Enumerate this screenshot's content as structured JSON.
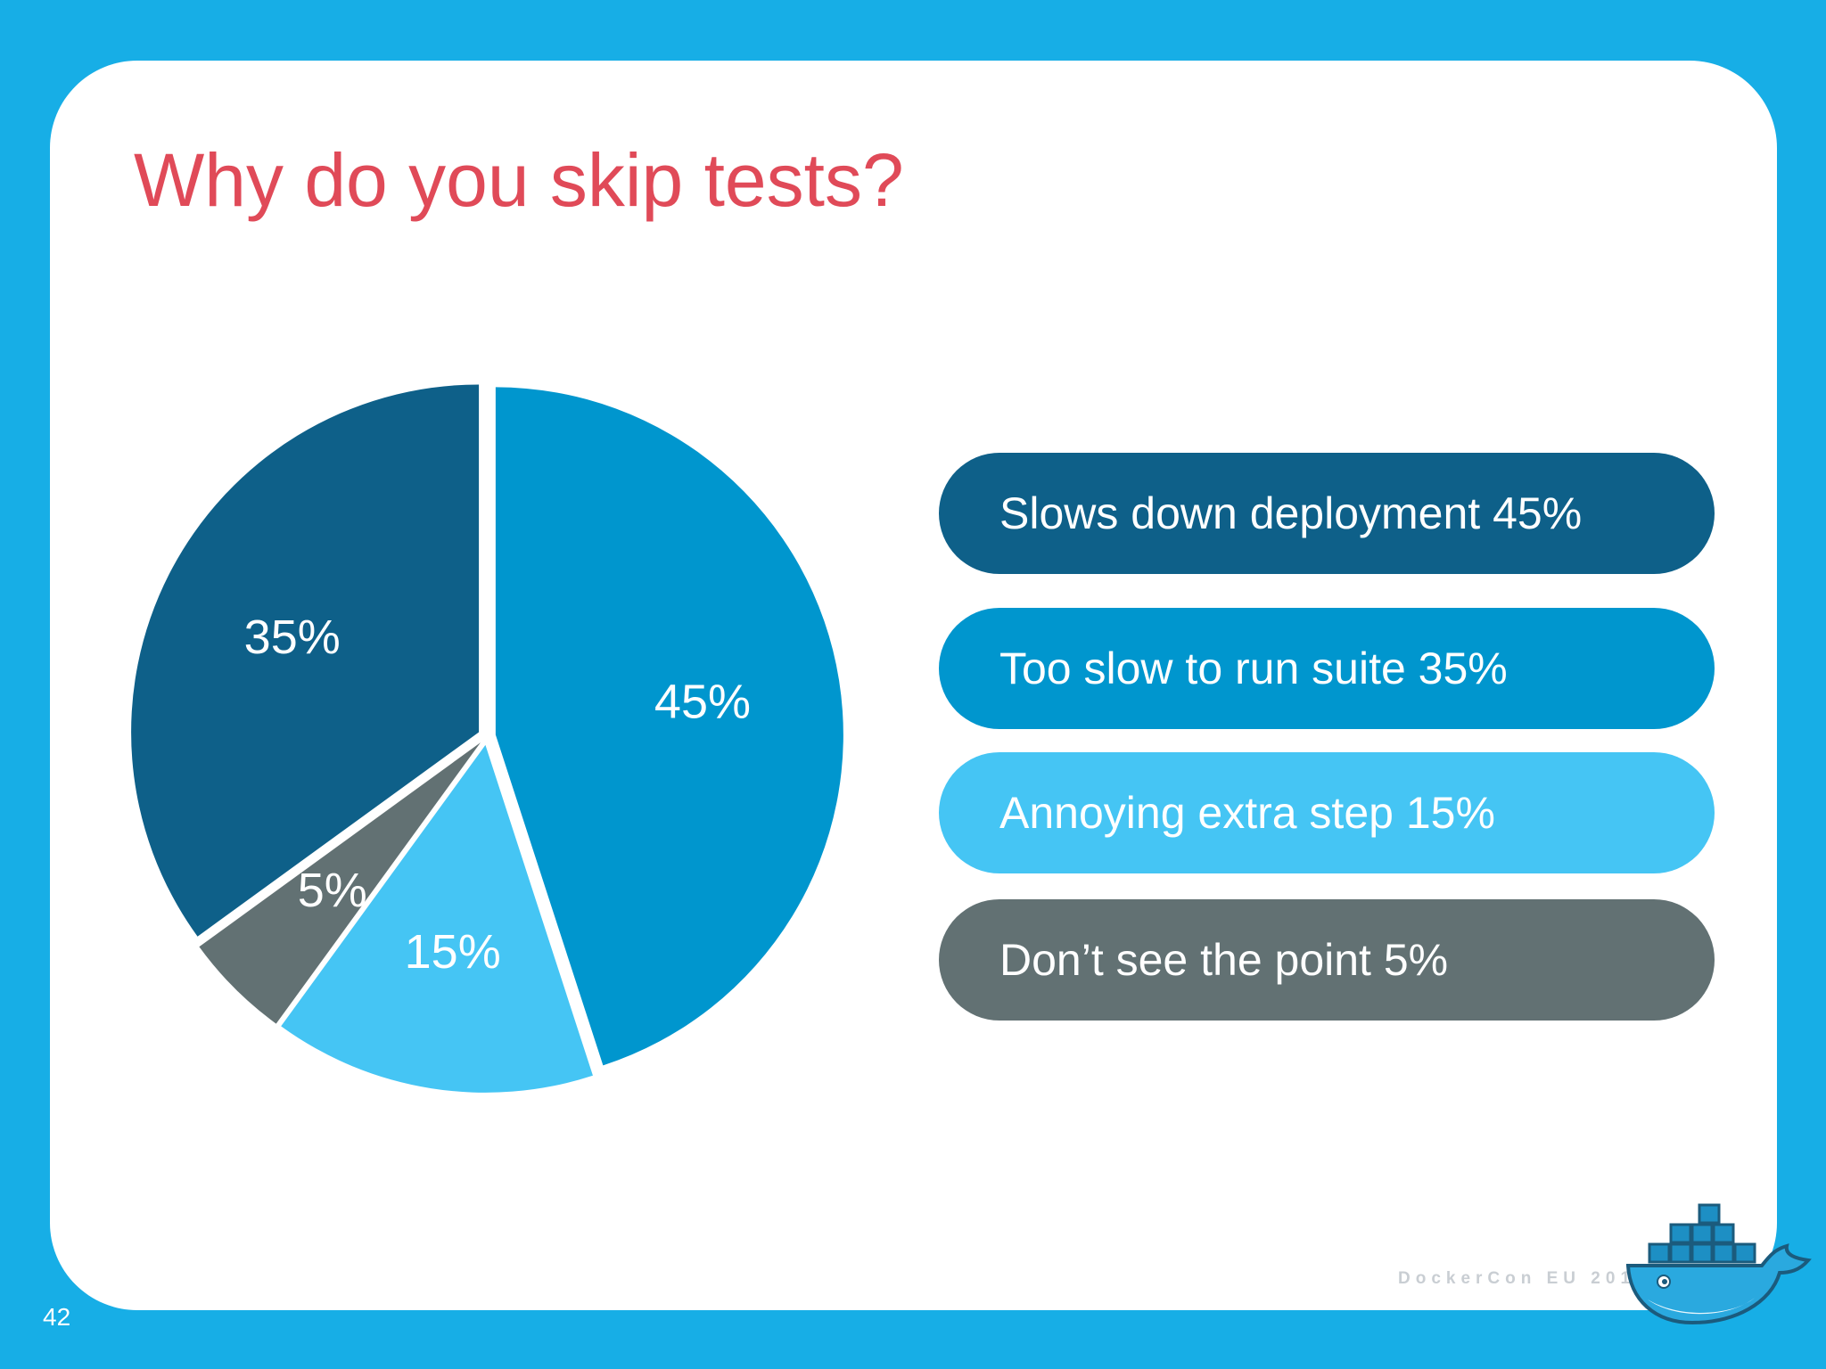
{
  "slide": {
    "title": "Why do you skip tests?",
    "page_number": "42",
    "footer": "DockerCon EU 2015",
    "logo_icon": "docker-whale-icon"
  },
  "colors": {
    "background": "#17aee6",
    "card": "#ffffff",
    "title": "#e04a58"
  },
  "chart_data": {
    "type": "pie",
    "start": "12 o'clock",
    "direction": "clockwise",
    "slices": [
      {
        "label": "Slows down deployment 45%",
        "value": 45,
        "data_label": "45%",
        "color": "#0096ce"
      },
      {
        "label": "Annoying extra step 15%",
        "value": 15,
        "data_label": "15%",
        "color": "#45c5f4"
      },
      {
        "label": "Don’t see the point 5%",
        "value": 5,
        "data_label": "5%",
        "color": "#627173"
      },
      {
        "label": "Too slow to run suite 35%",
        "value": 35,
        "data_label": "35%",
        "color": "#0e6089"
      }
    ],
    "legend": {
      "placement": "right",
      "items": [
        {
          "text": "Slows down deployment 45%",
          "color": "#0e6089"
        },
        {
          "text": "Too slow to run suite 35%",
          "color": "#0096ce"
        },
        {
          "text": "Annoying extra step 15%",
          "color": "#45c5f4"
        },
        {
          "text": "Don’t see the point 5%",
          "color": "#627173"
        }
      ]
    }
  }
}
